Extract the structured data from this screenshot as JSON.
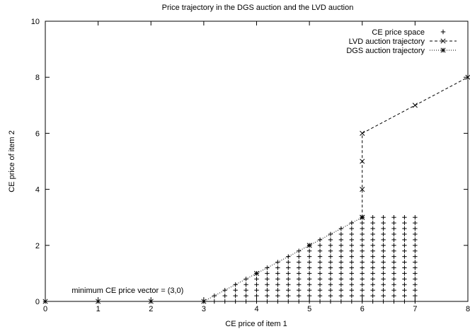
{
  "chart_data": {
    "type": "scatter",
    "title": "Price trajectory in the DGS auction and the LVD auction",
    "xlabel": "CE price of item 1",
    "ylabel": "CE price of item 2",
    "xlim": [
      0,
      8
    ],
    "ylim": [
      0,
      10
    ],
    "xticks": [
      0,
      1,
      2,
      3,
      4,
      5,
      6,
      7,
      8
    ],
    "yticks": [
      0,
      2,
      4,
      6,
      8,
      10
    ],
    "grid": false,
    "legend_position": "top-right",
    "annotation": {
      "text": "minimum CE price vector = (3,0)",
      "x": 0.5,
      "y": 0.4
    },
    "series": [
      {
        "name": "CE price space",
        "marker": "+",
        "line": "none",
        "region": {
          "x_from": 3,
          "x_to": 7,
          "step": 0.2,
          "y_max_rule": "min(x - 3, 3)"
        }
      },
      {
        "name": "LVD auction trajectory",
        "marker": "x",
        "line": "dashed",
        "points": [
          [
            6,
            3
          ],
          [
            6,
            4
          ],
          [
            6,
            5
          ],
          [
            6,
            6
          ],
          [
            7,
            7
          ],
          [
            8,
            8
          ]
        ]
      },
      {
        "name": "DGS auction trajectory",
        "marker": "*",
        "line": "dotted",
        "points": [
          [
            0,
            0
          ],
          [
            1,
            0
          ],
          [
            2,
            0
          ],
          [
            3,
            0
          ],
          [
            4,
            1
          ],
          [
            5,
            2
          ],
          [
            6,
            3
          ]
        ]
      }
    ]
  }
}
